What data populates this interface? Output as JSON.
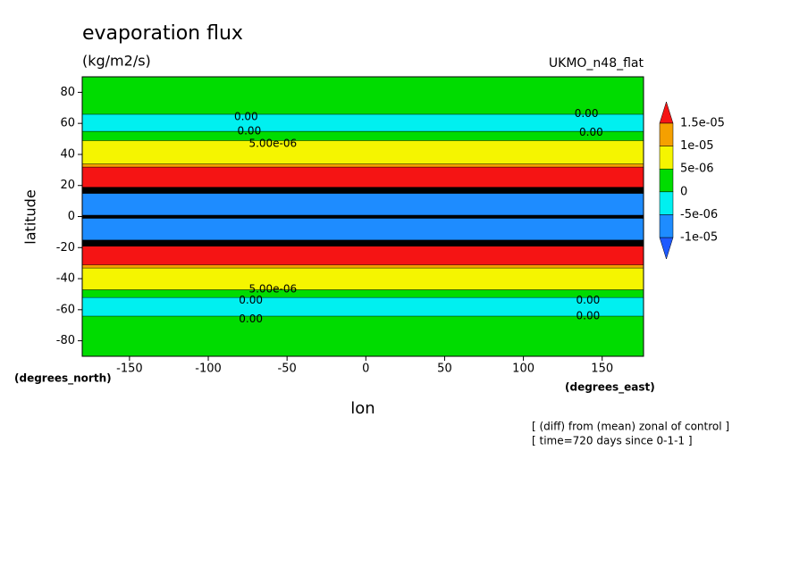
{
  "chart_data": {
    "type": "contour",
    "title": "evaporation flux",
    "units": "(kg/m2/s)",
    "model": "UKMO_n48_flat",
    "xlabel": "lon",
    "ylabel": "latitude",
    "xunits": "(degrees_east)",
    "yunits": "(degrees_north)",
    "notes": [
      "[ (diff) from (mean) zonal of control ]",
      "[ time=720 days since 0-1-1 ]"
    ],
    "xlim": [
      -180,
      176.25
    ],
    "ylim": [
      -90,
      90
    ],
    "xticks": [
      -150,
      -100,
      -50,
      0,
      50,
      100,
      150
    ],
    "yticks": [
      -80,
      -60,
      -40,
      -20,
      0,
      20,
      40,
      60,
      80
    ],
    "levels": [
      {
        "value": -1e-05,
        "label": "-1e-05"
      },
      {
        "value": -5e-06,
        "label": "-5e-06"
      },
      0,
      {
        "value": 5e-06,
        "label": "5e-06"
      },
      {
        "value": 1e-05,
        "label": "1e-05"
      },
      {
        "value": 1.5e-05,
        "label": "1.5e-05"
      }
    ],
    "colors": [
      "#1e5aff",
      "#1e8cff",
      "#00f0f0",
      "#00dc00",
      "#f5f500",
      "#f5a000",
      "#f51414"
    ],
    "bands": [
      {
        "from": -90,
        "to": -64,
        "color": "#00dc00"
      },
      {
        "from": -64,
        "to": -52,
        "color": "#00f0f0"
      },
      {
        "from": -52,
        "to": -47,
        "color": "#00dc00"
      },
      {
        "from": -47,
        "to": -33,
        "color": "#f5f500"
      },
      {
        "from": -33,
        "to": -31,
        "color": "#f5a000"
      },
      {
        "from": -31,
        "to": -19,
        "color": "#f51414"
      },
      {
        "from": -19,
        "to": -15,
        "color": "#000000"
      },
      {
        "from": -15,
        "to": -1,
        "color": "#1e8cff"
      },
      {
        "from": -1,
        "to": 1,
        "color": "#000000"
      },
      {
        "from": 1,
        "to": 15,
        "color": "#1e8cff"
      },
      {
        "from": 15,
        "to": 19,
        "color": "#000000"
      },
      {
        "from": 19,
        "to": 32,
        "color": "#f51414"
      },
      {
        "from": 32,
        "to": 34,
        "color": "#f5a000"
      },
      {
        "from": 34,
        "to": 49,
        "color": "#f5f500"
      },
      {
        "from": 49,
        "to": 55,
        "color": "#00dc00"
      },
      {
        "from": 55,
        "to": 66,
        "color": "#00f0f0"
      },
      {
        "from": 66,
        "to": 90,
        "color": "#00dc00"
      }
    ],
    "contour_labels": [
      {
        "text": "0.00",
        "lon": -76,
        "lat": 64
      },
      {
        "text": "0.00",
        "lon": -74,
        "lat": 55
      },
      {
        "text": "0.00",
        "lon": 140,
        "lat": 66
      },
      {
        "text": "0.00",
        "lon": 143,
        "lat": 54
      },
      {
        "text": "5.00e-06",
        "lon": -59,
        "lat": 47
      },
      {
        "text": "5.00e-06",
        "lon": -59,
        "lat": -47
      },
      {
        "text": "0.00",
        "lon": -73,
        "lat": -54
      },
      {
        "text": "0.00",
        "lon": -73,
        "lat": -66
      },
      {
        "text": "0.00",
        "lon": 141,
        "lat": -54
      },
      {
        "text": "0.00",
        "lon": 141,
        "lat": -64
      }
    ]
  }
}
